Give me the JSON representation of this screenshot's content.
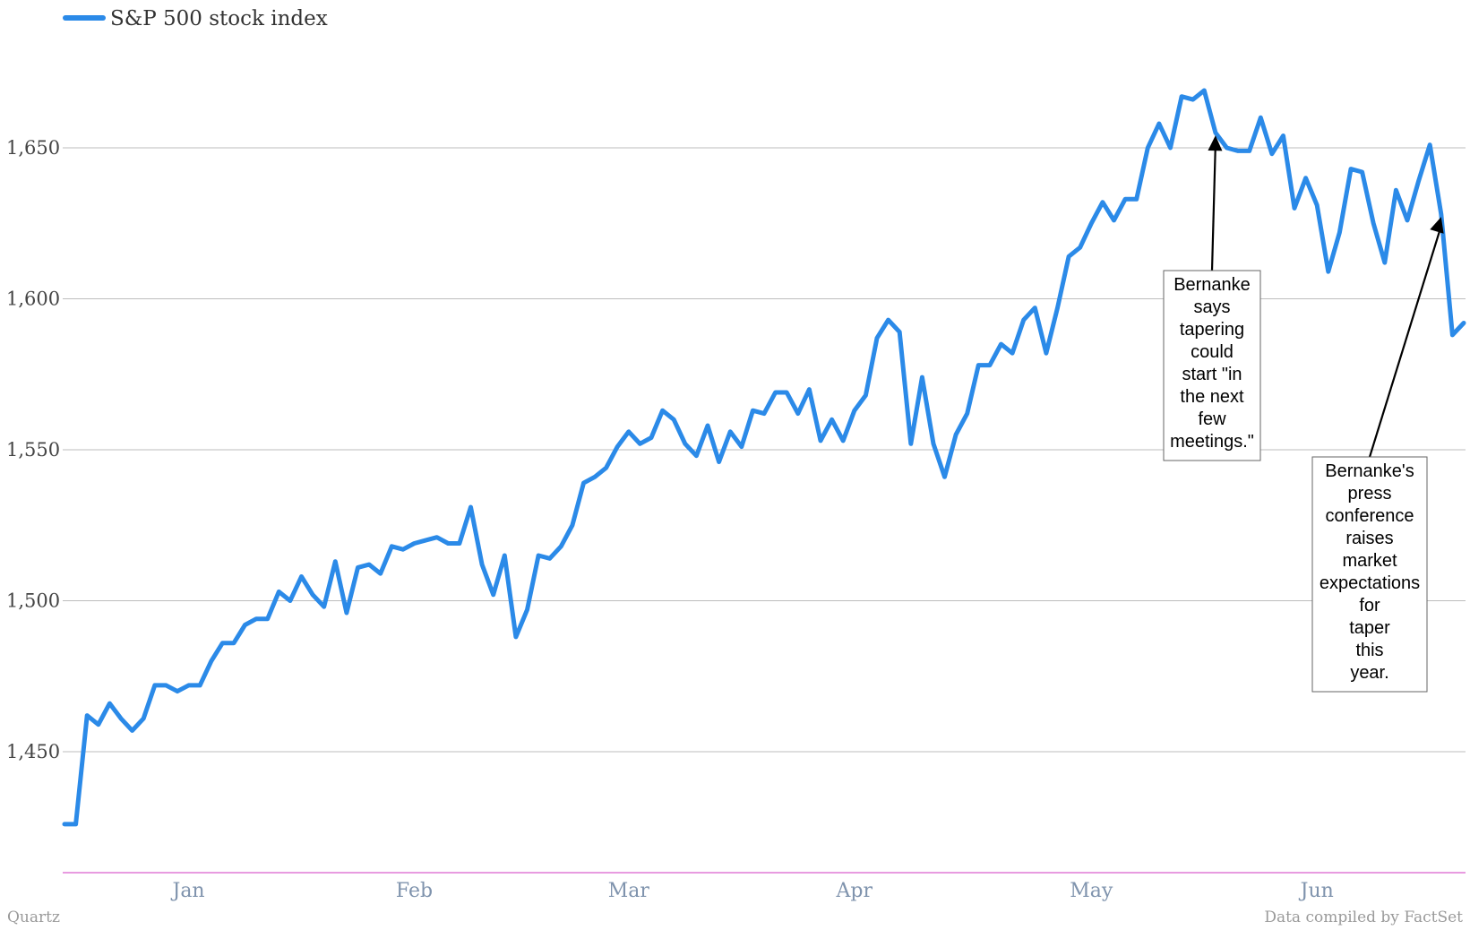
{
  "chart_data": {
    "type": "line",
    "title": "",
    "xlabel": "",
    "ylabel": "",
    "ylim": [
      1410,
      1690
    ],
    "y_ticks": [
      1450,
      1500,
      1550,
      1600,
      1650
    ],
    "y_tick_labels": [
      "1,450",
      "1,500",
      "1,550",
      "1,600",
      "1,650"
    ],
    "x_ticks": [
      {
        "label": "Jan",
        "index": 11
      },
      {
        "label": "Feb",
        "index": 31
      },
      {
        "label": "Mar",
        "index": 50
      },
      {
        "label": "Apr",
        "index": 70
      },
      {
        "label": "May",
        "index": 91
      },
      {
        "label": "Jun",
        "index": 111
      }
    ],
    "grid": true,
    "legend": {
      "position": "top-left"
    },
    "series": [
      {
        "name": "S&P 500 stock index",
        "color": "#2b8ae8",
        "values": [
          1426,
          1426,
          1462,
          1459,
          1466,
          1461,
          1457,
          1461,
          1472,
          1472,
          1470,
          1472,
          1472,
          1480,
          1486,
          1486,
          1492,
          1494,
          1494,
          1503,
          1500,
          1508,
          1502,
          1498,
          1513,
          1496,
          1511,
          1512,
          1509,
          1518,
          1517,
          1519,
          1520,
          1521,
          1519,
          1519,
          1531,
          1512,
          1502,
          1515,
          1488,
          1497,
          1515,
          1514,
          1518,
          1525,
          1539,
          1541,
          1544,
          1551,
          1556,
          1552,
          1554,
          1563,
          1560,
          1552,
          1548,
          1558,
          1546,
          1556,
          1551,
          1563,
          1562,
          1569,
          1569,
          1562,
          1570,
          1553,
          1560,
          1553,
          1563,
          1568,
          1587,
          1593,
          1589,
          1552,
          1574,
          1552,
          1541,
          1555,
          1562,
          1578,
          1578,
          1585,
          1582,
          1593,
          1597,
          1582,
          1597,
          1614,
          1617,
          1625,
          1632,
          1626,
          1633,
          1633,
          1650,
          1658,
          1650,
          1667,
          1666,
          1669,
          1655,
          1650,
          1649,
          1649,
          1660,
          1648,
          1654,
          1630,
          1640,
          1631,
          1609,
          1622,
          1643,
          1642,
          1625,
          1612,
          1636,
          1626,
          1639,
          1651,
          1628,
          1588,
          1592
        ]
      }
    ],
    "annotations": [
      {
        "lines": [
          "Bernanke",
          "says",
          "tapering",
          "could",
          "start \"in",
          "the next",
          "few",
          "meetings.\""
        ],
        "target_index": 102
      },
      {
        "lines": [
          "Bernanke's",
          "press",
          "conference",
          "raises",
          "market",
          "expectations",
          "for",
          "taper",
          "this",
          "year."
        ],
        "target_index": 122
      }
    ],
    "footer_left": "Quartz",
    "footer_right": "Data compiled by FactSet"
  }
}
